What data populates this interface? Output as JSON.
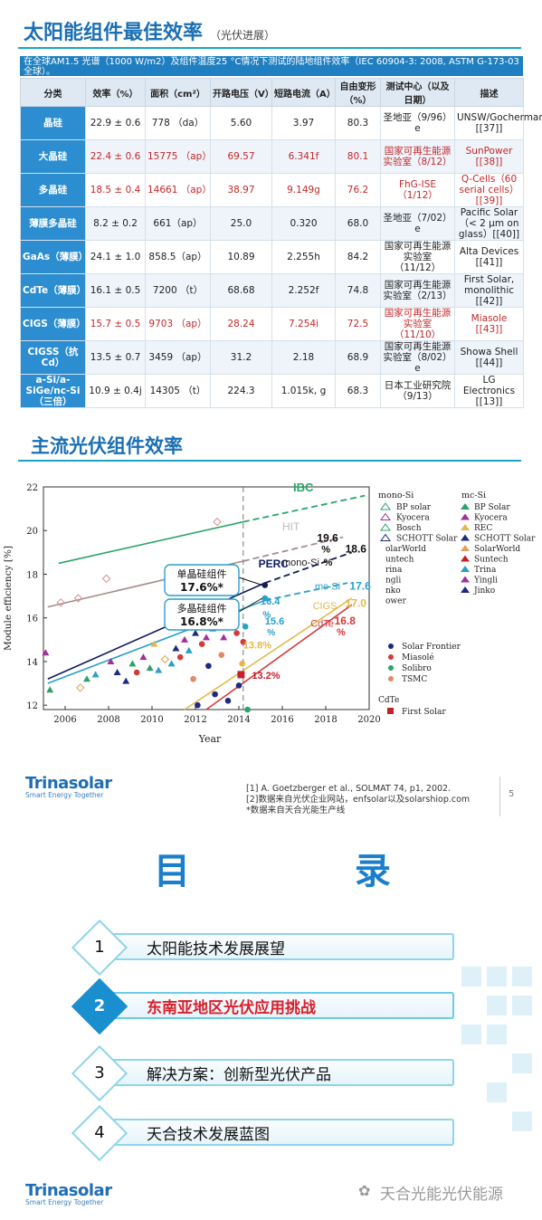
{
  "slide1": {
    "title": "太阳能组件最佳效率",
    "subtitle": "（光伏进展）",
    "caption": "在全球AM1.5 光谱（1000 W/m2）及组件温度25 °C情况下测试的陆地组件效率（IEC 60904-3: 2008, ASTM G-173-03全球）。",
    "headers": [
      "分类",
      "效率（%）",
      "面积（cm²）",
      "开路电压（V）",
      "短路电流（A）",
      "自由变形（%）",
      "测试中心（以及日期）",
      "描述"
    ],
    "rows": [
      {
        "cat": "晶硅",
        "eff": "22.9 ± 0.6",
        "area": "778 （da）",
        "voc": "5.60",
        "isc": "3.97",
        "ff": "80.3",
        "center": "圣地亚（9/96）e",
        "desc": "UNSW/Gochermann [[37]]",
        "red": false
      },
      {
        "cat": "大晶硅",
        "eff": "22.4 ± 0.6",
        "area": "15775 （ap）",
        "voc": "69.57",
        "isc": "6.341f",
        "ff": "80.1",
        "center": "国家可再生能源实验室（8/12）",
        "desc": "SunPower [[38]]",
        "red": true
      },
      {
        "cat": "多晶硅",
        "eff": "18.5 ± 0.4",
        "area": "14661 （ap）",
        "voc": "38.97",
        "isc": "9.149g",
        "ff": "76.2",
        "center": "FhG-ISE（1/12）",
        "desc": "Q-Cells（60 serial cells）[[39]]",
        "red": true
      },
      {
        "cat": "薄膜多晶硅",
        "eff": "8.2 ± 0.2",
        "area": "661（ap）",
        "voc": "25.0",
        "isc": "0.320",
        "ff": "68.0",
        "center": "圣地亚（7/02）e",
        "desc": "Pacific Solar（< 2 μm on glass）[[40]]",
        "red": false
      },
      {
        "cat": "GaAs（薄膜）",
        "eff": "24.1 ± 1.0",
        "area": "858.5（ap）",
        "voc": "10.89",
        "isc": "2.255h",
        "ff": "84.2",
        "center": "国家可再生能源实验室（11/12）",
        "desc": "Alta Devices [[41]]",
        "red": false
      },
      {
        "cat": "CdTe（薄膜）",
        "eff": "16.1 ± 0.5",
        "area": "7200 （t）",
        "voc": "68.68",
        "isc": "2.252f",
        "ff": "74.8",
        "center": "国家可再生能源实验室（2/13）",
        "desc": "First Solar, monolithic [[42]]",
        "red": false
      },
      {
        "cat": "CIGS（薄膜）",
        "eff": "15.7 ± 0.5",
        "area": "9703 （ap）",
        "voc": "28.24",
        "isc": "7.254i",
        "ff": "72.5",
        "center": "国家可再生能源实验室（11/10）",
        "desc": "Miasole [[43]]",
        "red": true
      },
      {
        "cat": "CIGSS（抗Cd）",
        "eff": "13.5 ± 0.7",
        "area": "3459 （ap）",
        "voc": "31.2",
        "isc": "2.18",
        "ff": "68.9",
        "center": "国家可再生能源实验室（8/02）e",
        "desc": "Showa Shell [[44]]",
        "red": false
      },
      {
        "cat": "a-Si/a-SiGe/nc-Si（三倍）",
        "eff": "10.9 ± 0.4j",
        "area": "14305 （t）",
        "voc": "224.3",
        "isc": "1.015k, g",
        "ff": "68.3",
        "center": "日本工业研究院（9/13）",
        "desc": "LG Electronics [[13]]",
        "red": false
      }
    ]
  },
  "slide2": {
    "title": "主流光伏组件效率",
    "refs": [
      "[1] A. Goetzberger et al., SOLMAT 74, p1, 2002.",
      "[2]数据来自光伏企业网站，enfsolar以及solarshiop.com",
      "*数据来自天合光能生产线"
    ],
    "page_number": "5"
  },
  "chart_data": {
    "type": "scatter",
    "xlabel": "Year",
    "ylabel": "Module efficiency [%]",
    "xlim": [
      2005,
      2020
    ],
    "ylim": [
      11.8,
      22
    ],
    "xticks": [
      "2006",
      "2008",
      "2010",
      "2012",
      "2014",
      "2016",
      "2018",
      "2020"
    ],
    "yticks": [
      "12",
      "14",
      "16",
      "18",
      "20",
      "22"
    ],
    "trend_lines": [
      {
        "name": "IBC",
        "color": "#2aa36b",
        "x": [
          2005.7,
          2014.2
        ],
        "y": [
          18.5,
          20.4
        ],
        "proj_x": [
          2014.2,
          2019.8
        ],
        "proj_y": [
          20.4,
          21.6
        ]
      },
      {
        "name": "HIT",
        "color": "#a78c8c",
        "x": [
          2005.2,
          2014.2
        ],
        "y": [
          16.5,
          18.6
        ],
        "proj_x": [
          2014.2,
          2018.8
        ],
        "proj_y": [
          18.6,
          19.7
        ]
      },
      {
        "name": "PERC",
        "color": "#111c5e",
        "x": [
          2005.2,
          2015.2
        ],
        "y": [
          13.2,
          17.6
        ],
        "proj_x": [
          2015.2,
          2019.2
        ],
        "proj_y": [
          17.6,
          19.0
        ]
      },
      {
        "name": "mc-Si",
        "color": "#2a9fc9",
        "x": [
          2005.2,
          2015.2
        ],
        "y": [
          13.0,
          16.8
        ],
        "proj_x": [
          2015.2,
          2019.0
        ],
        "proj_y": [
          16.8,
          17.6
        ]
      },
      {
        "name": "CIGS",
        "color": "#e2b84a",
        "x": [
          2011.5,
          2019.2
        ],
        "y": [
          11.8,
          16.9
        ],
        "proj_x": [],
        "proj_y": []
      },
      {
        "name": "CdTe",
        "color": "#d43a3a",
        "x": [
          2012.5,
          2019.2
        ],
        "y": [
          11.8,
          16.6
        ],
        "proj_x": [],
        "proj_y": []
      }
    ],
    "points": [
      {
        "x": 2005.1,
        "y": 14.4,
        "color": "#a0309a",
        "shape": "tri"
      },
      {
        "x": 2005.3,
        "y": 12.7,
        "color": "#2aa36b",
        "shape": "tri"
      },
      {
        "x": 2005.8,
        "y": 16.7,
        "color": "#d48f8f",
        "shape": "diamond"
      },
      {
        "x": 2006.6,
        "y": 16.9,
        "color": "#d48f8f",
        "shape": "diamond"
      },
      {
        "x": 2006.7,
        "y": 12.8,
        "color": "#d9a55c",
        "shape": "diamond"
      },
      {
        "x": 2007.0,
        "y": 13.2,
        "color": "#2aa36b",
        "shape": "tri"
      },
      {
        "x": 2007.4,
        "y": 13.4,
        "color": "#2a9fc9",
        "shape": "tri"
      },
      {
        "x": 2007.9,
        "y": 17.8,
        "color": "#d48f8f",
        "shape": "diamond"
      },
      {
        "x": 2008.1,
        "y": 14.0,
        "color": "#a0309a",
        "shape": "tri"
      },
      {
        "x": 2008.4,
        "y": 13.5,
        "color": "#1d2a80",
        "shape": "tri"
      },
      {
        "x": 2008.8,
        "y": 13.1,
        "color": "#1d2a80",
        "shape": "tri"
      },
      {
        "x": 2009.1,
        "y": 13.9,
        "color": "#2aa36b",
        "shape": "tri"
      },
      {
        "x": 2009.3,
        "y": 13.5,
        "color": "#d43a3a",
        "shape": "circle"
      },
      {
        "x": 2009.6,
        "y": 14.2,
        "color": "#a0309a",
        "shape": "tri"
      },
      {
        "x": 2009.9,
        "y": 13.7,
        "color": "#2aa36b",
        "shape": "tri"
      },
      {
        "x": 2010.1,
        "y": 14.8,
        "color": "#e2b84a",
        "shape": "tri"
      },
      {
        "x": 2010.3,
        "y": 13.6,
        "color": "#2a9fc9",
        "shape": "tri"
      },
      {
        "x": 2010.6,
        "y": 14.1,
        "color": "#d9a55c",
        "shape": "diamond"
      },
      {
        "x": 2010.9,
        "y": 13.9,
        "color": "#2a9fc9",
        "shape": "tri"
      },
      {
        "x": 2011.1,
        "y": 14.6,
        "color": "#1d2a80",
        "shape": "tri"
      },
      {
        "x": 2011.3,
        "y": 14.2,
        "color": "#d43a3a",
        "shape": "circle"
      },
      {
        "x": 2011.5,
        "y": 15.0,
        "color": "#a0309a",
        "shape": "tri"
      },
      {
        "x": 2011.7,
        "y": 14.5,
        "color": "#2a9fc9",
        "shape": "tri"
      },
      {
        "x": 2011.9,
        "y": 13.2,
        "color": "#e08a6a",
        "shape": "circle"
      },
      {
        "x": 2012.0,
        "y": 15.3,
        "color": "#1d2a80",
        "shape": "tri"
      },
      {
        "x": 2012.1,
        "y": 12.0,
        "color": "#1d2a80",
        "shape": "circle"
      },
      {
        "x": 2012.3,
        "y": 14.8,
        "color": "#d43a3a",
        "shape": "circle"
      },
      {
        "x": 2012.5,
        "y": 15.1,
        "color": "#a0309a",
        "shape": "tri"
      },
      {
        "x": 2012.6,
        "y": 13.8,
        "color": "#1d2a80",
        "shape": "circle"
      },
      {
        "x": 2012.8,
        "y": 15.5,
        "color": "#2a9fc9",
        "shape": "tri"
      },
      {
        "x": 2012.9,
        "y": 12.5,
        "color": "#1d2a80",
        "shape": "circle"
      },
      {
        "x": 2013.0,
        "y": 20.4,
        "color": "#d48f8f",
        "shape": "diamond"
      },
      {
        "x": 2013.1,
        "y": 15.8,
        "color": "#1d2a80",
        "shape": "tri"
      },
      {
        "x": 2013.2,
        "y": 14.3,
        "color": "#e08a6a",
        "shape": "circle"
      },
      {
        "x": 2013.3,
        "y": 15.1,
        "color": "#a0309a",
        "shape": "tri"
      },
      {
        "x": 2013.5,
        "y": 12.2,
        "color": "#1d2a80",
        "shape": "circle"
      },
      {
        "x": 2013.7,
        "y": 15.6,
        "color": "#d9a55c",
        "shape": "diamond"
      },
      {
        "x": 2013.9,
        "y": 15.3,
        "color": "#d43a3a",
        "shape": "circle"
      },
      {
        "x": 2014.0,
        "y": 12.9,
        "color": "#1d2a80",
        "shape": "circle"
      },
      {
        "x": 2014.1,
        "y": 13.4,
        "color": "#c7202b",
        "shape": "square"
      },
      {
        "x": 2014.15,
        "y": 13.9,
        "color": "#e2b84a",
        "shape": "circle"
      },
      {
        "x": 2014.2,
        "y": 14.9,
        "color": "#d43a3a",
        "shape": "circle"
      },
      {
        "x": 2014.3,
        "y": 15.6,
        "color": "#2a9fc9",
        "shape": "circle"
      },
      {
        "x": 2014.4,
        "y": 11.8,
        "color": "#2aa36b",
        "shape": "circle"
      },
      {
        "x": 2015.2,
        "y": 17.5,
        "color": "#111c5e",
        "shape": "circle"
      },
      {
        "x": 2015.2,
        "y": 16.9,
        "color": "#2a9fc9",
        "shape": "circle"
      }
    ],
    "annotations": [
      {
        "text": "IBC",
        "x": 2016.5,
        "y": 21.8,
        "color": "#2aa36b",
        "size": 13,
        "bold": true
      },
      {
        "text": "HIT",
        "x": 2016.0,
        "y": 20.0,
        "color": "#bbb",
        "size": 12,
        "bold": false
      },
      {
        "text": "PERC",
        "x": 2014.9,
        "y": 18.3,
        "color": "#111c5e",
        "size": 12,
        "bold": true
      },
      {
        "text": "19.6",
        "x": 2017.6,
        "y": 19.5,
        "color": "#111",
        "size": 12,
        "bold": true
      },
      {
        "text": "%",
        "x": 2017.8,
        "y": 19.0,
        "color": "#111",
        "size": 11,
        "bold": true
      },
      {
        "text": "18.6",
        "x": 2018.9,
        "y": 19.0,
        "color": "#111",
        "size": 12,
        "bold": true
      },
      {
        "text": "mono-Si",
        "x": 2016.0,
        "y": 18.4,
        "color": "#222",
        "size": 11,
        "bold": false
      },
      {
        "text": "%",
        "x": 2017.9,
        "y": 18.4,
        "color": "#111",
        "size": 11,
        "bold": true
      },
      {
        "text": "mc-Si",
        "x": 2017.5,
        "y": 17.3,
        "color": "#2a9fc9",
        "size": 11,
        "bold": false
      },
      {
        "text": "17.6",
        "x": 2019.1,
        "y": 17.3,
        "color": "#2a9fc9",
        "size": 12,
        "bold": true
      },
      {
        "text": "16.4",
        "x": 2015.0,
        "y": 16.6,
        "color": "#2a9fc9",
        "size": 11,
        "bold": true
      },
      {
        "text": "%",
        "x": 2015.1,
        "y": 16.0,
        "color": "#2a9fc9",
        "size": 10,
        "bold": true
      },
      {
        "text": "CIGS",
        "x": 2017.4,
        "y": 16.4,
        "color": "#e2b84a",
        "size": 11,
        "bold": false
      },
      {
        "text": "17.0",
        "x": 2018.9,
        "y": 16.5,
        "color": "#e2b84a",
        "size": 12,
        "bold": true
      },
      {
        "text": "15.6",
        "x": 2015.2,
        "y": 15.7,
        "color": "#2a9fc9",
        "size": 11,
        "bold": true
      },
      {
        "text": "%",
        "x": 2015.3,
        "y": 15.2,
        "color": "#2a9fc9",
        "size": 10,
        "bold": true
      },
      {
        "text": "CdTe",
        "x": 2017.3,
        "y": 15.6,
        "color": "#d43a3a",
        "size": 11,
        "bold": false
      },
      {
        "text": "16.8",
        "x": 2018.4,
        "y": 15.7,
        "color": "#d43a3a",
        "size": 12,
        "bold": true
      },
      {
        "text": "%",
        "x": 2018.5,
        "y": 15.2,
        "color": "#d43a3a",
        "size": 11,
        "bold": true
      },
      {
        "text": "13.8%",
        "x": 2014.2,
        "y": 14.6,
        "color": "#e2b84a",
        "size": 11,
        "bold": true
      },
      {
        "text": "13.2%",
        "x": 2014.6,
        "y": 13.2,
        "color": "#c7202b",
        "size": 11,
        "bold": true
      }
    ],
    "vline_x": 2014.2,
    "callouts": [
      {
        "line1": "单晶硅组件",
        "line2": "17.6%*",
        "target_x": 2015.2,
        "target_y": 17.5
      },
      {
        "line1": "多晶硅组件",
        "line2": "16.8%*",
        "target_x": 2015.2,
        "target_y": 16.9
      }
    ],
    "legend_monosi": {
      "title": "mono-Si",
      "items": [
        "BP solar",
        "Kyocera",
        "Bosch",
        "SCHOTT Solar",
        "olarWorld",
        "untech",
        "rina",
        "ngli",
        "nko",
        "ower"
      ]
    },
    "legend_mcsi": {
      "title": "mc-Si",
      "items": [
        "BP Solar",
        "Kyocera",
        "REC",
        "SCHOTT Solar",
        "SolarWorld",
        "Suntech",
        "Trina",
        "Yingli",
        "Jinko"
      ]
    },
    "legend_cigs": {
      "items": [
        "Solar Frontier",
        "Miasolé",
        "Solibro",
        "TSMC"
      ]
    },
    "legend_cdte": {
      "title": "CdTe",
      "items": [
        "First Solar"
      ]
    }
  },
  "toc": {
    "title": "目 录",
    "items": [
      {
        "num": "1",
        "label": "太阳能技术发展展望",
        "active": false
      },
      {
        "num": "2",
        "label": "东南亚地区光伏应用挑战",
        "active": true
      },
      {
        "num": "3",
        "label": "解决方案：创新型光伏产品",
        "active": false
      },
      {
        "num": "4",
        "label": "天合技术发展蓝图",
        "active": false
      }
    ]
  },
  "brand": {
    "name": "Trinasolar",
    "tagline": "Smart Energy Together"
  },
  "watermark": "天合光能光伏能源"
}
